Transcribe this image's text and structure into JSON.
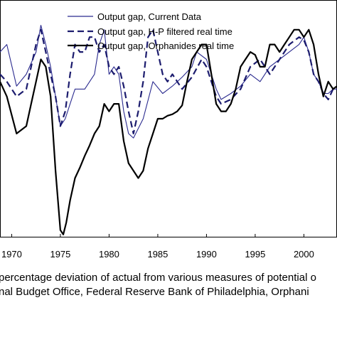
{
  "chart_data": {
    "type": "line",
    "title": "",
    "xlabel": "",
    "ylabel": "",
    "xlim": [
      1968.8,
      2003.4
    ],
    "ylim": [
      -10.5,
      5.5
    ],
    "x_ticks": [
      1970,
      1975,
      1980,
      1985,
      1990,
      1995,
      2000
    ],
    "x_tick_labels": [
      "1970",
      "1975",
      "1980",
      "1985",
      "1990",
      "1995",
      "2000"
    ],
    "grid": false,
    "legend_position": "top",
    "series": [
      {
        "name": "Output gap, Current Data",
        "color": "#2b2b8f",
        "style": "thin-solid",
        "x": [
          1968.8,
          1969.5,
          1970.5,
          1971.5,
          1972.5,
          1973.0,
          1973.5,
          1974.0,
          1974.5,
          1975.0,
          1975.5,
          1976.0,
          1976.5,
          1977.5,
          1978.5,
          1979.0,
          1979.5,
          1980.0,
          1980.5,
          1981.0,
          1981.5,
          1982.0,
          1982.5,
          1983.5,
          1984.5,
          1985.5,
          1986.5,
          1987.5,
          1988.5,
          1989.0,
          1990.0,
          1990.5,
          1991.0,
          1991.5,
          1992.5,
          1993.5,
          1994.5,
          1995.5,
          1996.5,
          1997.5,
          1998.5,
          1999.5,
          2000.0,
          2000.5,
          2001.0,
          2001.5,
          2002.0,
          2002.5,
          2003.0,
          2003.4
        ],
        "y": [
          2.0,
          2.5,
          -0.3,
          0.5,
          2.0,
          3.8,
          2.5,
          1.0,
          -1.0,
          -3.0,
          -2.5,
          -1.5,
          -0.5,
          -0.5,
          0.5,
          2.5,
          3.5,
          0.5,
          1.0,
          0.5,
          -2.0,
          -3.5,
          -3.8,
          -2.5,
          0.0,
          -0.8,
          -0.3,
          0.3,
          1.0,
          2.0,
          1.5,
          0.5,
          -0.5,
          -1.2,
          -0.8,
          -0.3,
          0.5,
          0.0,
          1.0,
          1.5,
          2.0,
          2.5,
          3.0,
          2.0,
          0.5,
          0.0,
          -0.8,
          -0.8,
          -0.5,
          -0.5
        ]
      },
      {
        "name": "Output gap, H-P filtered real time",
        "color": "#1c1c6e",
        "style": "dashed",
        "x": [
          1968.8,
          1969.5,
          1970.5,
          1971.5,
          1972.0,
          1972.5,
          1973.0,
          1973.5,
          1974.0,
          1974.5,
          1975.0,
          1975.5,
          1976.0,
          1976.5,
          1977.0,
          1977.5,
          1978.0,
          1978.5,
          1979.0,
          1979.5,
          1980.0,
          1980.5,
          1981.0,
          1981.5,
          1982.0,
          1982.5,
          1983.0,
          1983.5,
          1984.0,
          1984.5,
          1985.0,
          1985.5,
          1986.0,
          1986.5,
          1987.0,
          1987.5,
          1988.5,
          1989.5,
          1990.0,
          1990.5,
          1991.0,
          1991.5,
          1992.5,
          1993.5,
          1994.5,
          1995.5,
          1996.5,
          1997.5,
          1998.5,
          1999.5,
          2000.0,
          2000.5,
          2001.0,
          2001.5,
          2002.0,
          2002.5,
          2003.0,
          2003.4
        ],
        "y": [
          0.5,
          0.0,
          -1.0,
          -0.5,
          1.0,
          2.5,
          3.5,
          2.0,
          0.5,
          -1.0,
          -3.0,
          -2.0,
          0.5,
          2.5,
          2.0,
          2.0,
          3.0,
          3.0,
          2.0,
          2.5,
          1.0,
          0.5,
          1.0,
          -0.3,
          -2.0,
          -3.5,
          -2.0,
          0.0,
          3.0,
          3.5,
          2.0,
          0.5,
          0.0,
          0.5,
          0.0,
          -0.5,
          0.3,
          1.5,
          1.0,
          0.0,
          -1.0,
          -1.5,
          -1.2,
          -0.5,
          1.0,
          1.5,
          0.5,
          1.5,
          2.5,
          3.0,
          2.8,
          2.0,
          0.5,
          0.0,
          -0.8,
          -1.2,
          -0.5,
          -0.5
        ]
      },
      {
        "name": "Output gap, Orphanides real time",
        "color": "#000000",
        "style": "thick-solid",
        "x": [
          1968.8,
          1969.5,
          1970.5,
          1971.5,
          1972.0,
          1972.5,
          1973.0,
          1973.5,
          1974.0,
          1974.5,
          1975.0,
          1975.3,
          1975.6,
          1976.0,
          1976.5,
          1977.0,
          1977.5,
          1978.0,
          1978.5,
          1979.0,
          1979.5,
          1980.0,
          1980.5,
          1981.0,
          1981.5,
          1982.0,
          1982.5,
          1983.0,
          1983.5,
          1984.0,
          1984.5,
          1985.0,
          1985.5,
          1986.0,
          1986.5,
          1987.0,
          1987.5,
          1988.0,
          1988.5,
          1989.0,
          1989.5,
          1990.0,
          1990.5,
          1991.0,
          1991.5,
          1992.0,
          1992.5,
          1993.0,
          1993.5,
          1994.0,
          1994.5,
          1995.0,
          1995.5,
          1996.0,
          1996.5,
          1997.0,
          1997.5,
          1998.0,
          1998.5,
          1999.0,
          1999.5,
          2000.0,
          2000.5,
          2001.0,
          2001.5,
          2002.0,
          2002.5,
          2003.0,
          2003.4
        ],
        "y": [
          0.0,
          -1.0,
          -3.5,
          -3.0,
          -1.5,
          0.0,
          1.5,
          1.0,
          -1.0,
          -6.0,
          -10.0,
          -10.3,
          -9.5,
          -8.0,
          -6.5,
          -5.8,
          -5.0,
          -4.3,
          -3.5,
          -3.0,
          -1.5,
          -2.0,
          -1.5,
          -1.5,
          -4.0,
          -5.5,
          -6.0,
          -6.5,
          -6.0,
          -4.5,
          -3.5,
          -2.5,
          -2.5,
          -2.3,
          -2.2,
          -2.0,
          -1.6,
          0.0,
          1.5,
          2.0,
          2.5,
          2.5,
          0.5,
          -1.5,
          -2.0,
          -2.0,
          -1.5,
          -0.5,
          1.0,
          1.5,
          2.0,
          1.8,
          1.0,
          1.0,
          2.5,
          2.5,
          2.0,
          2.5,
          3.0,
          3.5,
          3.5,
          3.0,
          3.5,
          2.5,
          0.5,
          -1.0,
          0.0,
          -0.5,
          -0.3
        ]
      }
    ]
  },
  "caption": {
    "line1": "percentage deviation of actual from various measures of potential o",
    "line2": "nal Budget Office, Federal Reserve Bank of Philadelphia, Orphani"
  }
}
